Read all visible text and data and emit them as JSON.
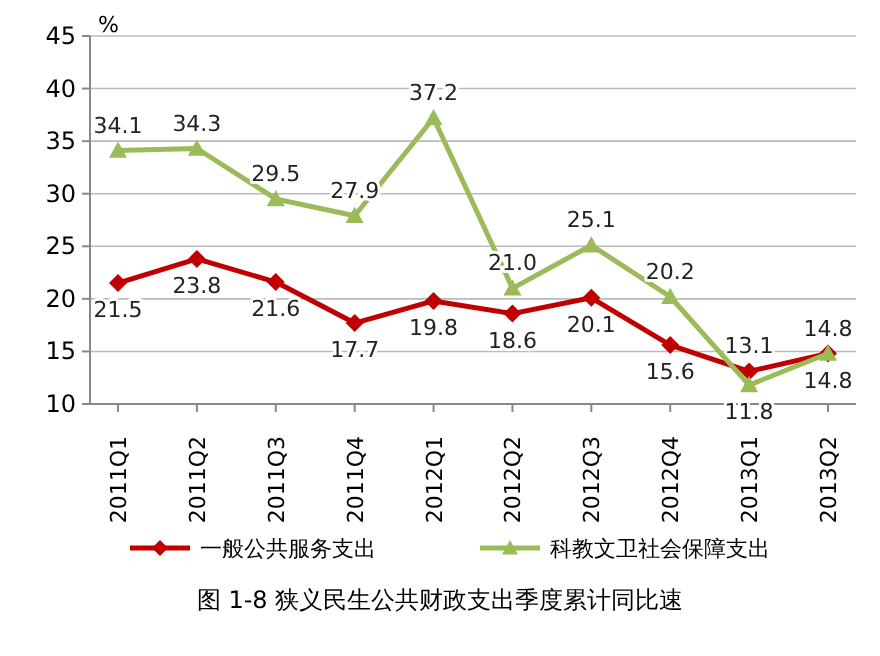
{
  "chart_data": {
    "type": "line",
    "title": "图 1-8 狭义民生公共财政支出季度累计同比速",
    "ylabel": "%",
    "categories": [
      "2011Q1",
      "2011Q2",
      "2011Q3",
      "2011Q4",
      "2012Q1",
      "2012Q2",
      "2012Q3",
      "2012Q4",
      "2013Q1",
      "2013Q2"
    ],
    "series": [
      {
        "name": "一般公共服务支出",
        "color": "#c00000",
        "marker": "diamond",
        "values": [
          21.5,
          23.8,
          21.6,
          17.7,
          19.8,
          18.6,
          20.1,
          15.6,
          13.1,
          14.8
        ],
        "value_labels": [
          "21.5",
          "23.8",
          "21.6",
          "17.7",
          "19.8",
          "18.6",
          "20.1",
          "15.6",
          "13.1",
          "14.8"
        ]
      },
      {
        "name": "科教文卫社会保障支出",
        "color": "#9bbb59",
        "marker": "triangle",
        "values": [
          34.1,
          34.3,
          29.5,
          27.9,
          37.2,
          21.0,
          25.1,
          20.2,
          11.8,
          14.8
        ],
        "value_labels": [
          "34.1",
          "34.3",
          "29.5",
          "27.9",
          "37.2",
          "21.0",
          "25.1",
          "20.2",
          "11.8",
          "14.8"
        ]
      }
    ],
    "ylim": [
      10,
      45
    ],
    "yticks": [
      10,
      15,
      20,
      25,
      30,
      35,
      40,
      45
    ],
    "grid": "y",
    "legend": "bottom"
  }
}
